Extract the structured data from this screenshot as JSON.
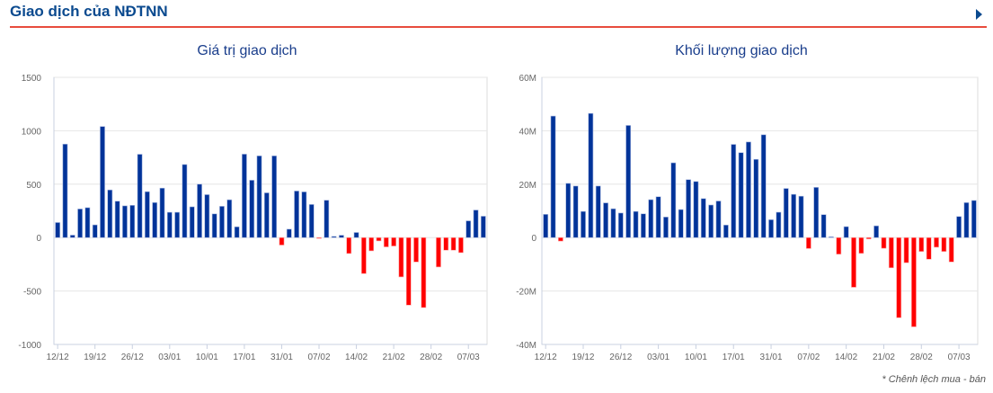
{
  "header": {
    "title": "Giao dịch của NĐTNN",
    "next_icon": "triangle-right-icon"
  },
  "footnote": "* Chênh lệch mua - bán",
  "colors": {
    "positive": "#003399",
    "negative": "#ff0000",
    "title": "#0b4a8f",
    "accent_line": "#e84c3d"
  },
  "chart_data": [
    {
      "type": "bar",
      "title": "Giá trị giao dịch",
      "xlabel": "",
      "ylabel": "",
      "ylim": [
        -1000,
        1500
      ],
      "yticks": [
        -1000,
        -500,
        0,
        500,
        1000,
        1500
      ],
      "ytick_labels": [
        "-1000",
        "-500",
        "0",
        "500",
        "1000",
        "1500"
      ],
      "xtick_labels": [
        "12/12",
        "19/12",
        "26/12",
        "03/01",
        "10/01",
        "17/01",
        "31/01",
        "07/02",
        "14/02",
        "21/02",
        "28/02",
        "07/03"
      ],
      "xtick_index": [
        0,
        5,
        10,
        15,
        20,
        25,
        30,
        35,
        40,
        45,
        50,
        55
      ],
      "grid": true,
      "values": [
        141,
        875,
        23,
        268,
        280,
        119,
        1040,
        446,
        341,
        297,
        302,
        780,
        430,
        328,
        463,
        237,
        237,
        684,
        288,
        500,
        402,
        222,
        293,
        354,
        101,
        781,
        537,
        765,
        419,
        765,
        -70,
        79,
        436,
        428,
        310,
        -8,
        350,
        11,
        22,
        -149,
        48,
        -337,
        -124,
        -31,
        -87,
        -79,
        -368,
        -632,
        -228,
        -655,
        0,
        -275,
        -118,
        -118,
        -141,
        157,
        258,
        200
      ]
    },
    {
      "type": "bar",
      "title": "Khối lượng giao dịch",
      "xlabel": "",
      "ylabel": "",
      "ylim": [
        -40000000,
        60000000
      ],
      "yticks": [
        -40000000,
        -20000000,
        0,
        20000000,
        40000000,
        60000000
      ],
      "ytick_labels": [
        "-40M",
        "-20M",
        "0",
        "20M",
        "40M",
        "60M"
      ],
      "xtick_labels": [
        "12/12",
        "19/12",
        "26/12",
        "03/01",
        "10/01",
        "17/01",
        "31/01",
        "07/02",
        "14/02",
        "21/02",
        "28/02",
        "07/03"
      ],
      "xtick_index": [
        0,
        5,
        10,
        15,
        20,
        25,
        30,
        35,
        40,
        45,
        50,
        55
      ],
      "grid": true,
      "values": [
        8700000,
        45500000,
        -1300000,
        20300000,
        19300000,
        9800000,
        46500000,
        19300000,
        13000000,
        10800000,
        9200000,
        42000000,
        9800000,
        8900000,
        14200000,
        15300000,
        7700000,
        28000000,
        10500000,
        21700000,
        21000000,
        14600000,
        12200000,
        13700000,
        4700000,
        34900000,
        31800000,
        35800000,
        29300000,
        38500000,
        6700000,
        9500000,
        18400000,
        16200000,
        15500000,
        -4100000,
        18800000,
        8600000,
        300000,
        -6200000,
        4100000,
        -18600000,
        -5900000,
        -500000,
        4400000,
        -4000000,
        -11300000,
        -30000000,
        -9400000,
        -33400000,
        -5200000,
        -8100000,
        -3600000,
        -5200000,
        -9100000,
        7900000,
        13100000,
        13900000
      ]
    }
  ]
}
